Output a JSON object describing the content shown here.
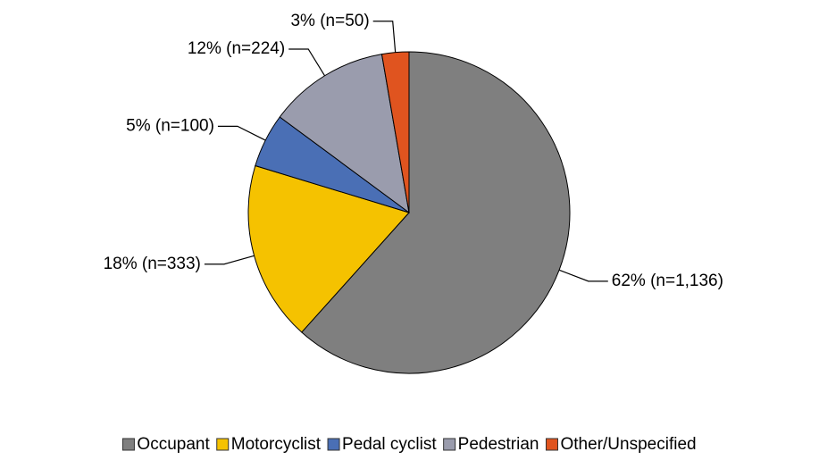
{
  "chart_data": {
    "type": "pie",
    "categories": [
      "Occupant",
      "Motorcyclist",
      "Pedal cyclist",
      "Pedestrian",
      "Other/Unspecified"
    ],
    "values": [
      1136,
      333,
      100,
      224,
      50
    ],
    "value_labels": [
      "62% (n=1,136)",
      "18% (n=333)",
      "5% (n=100)",
      "12% (n=224)",
      "3% (n=50)"
    ],
    "colors": [
      "#7f7f7f",
      "#f5c200",
      "#4a6fb5",
      "#9a9cad",
      "#e0541f"
    ],
    "legend": "bottom"
  }
}
